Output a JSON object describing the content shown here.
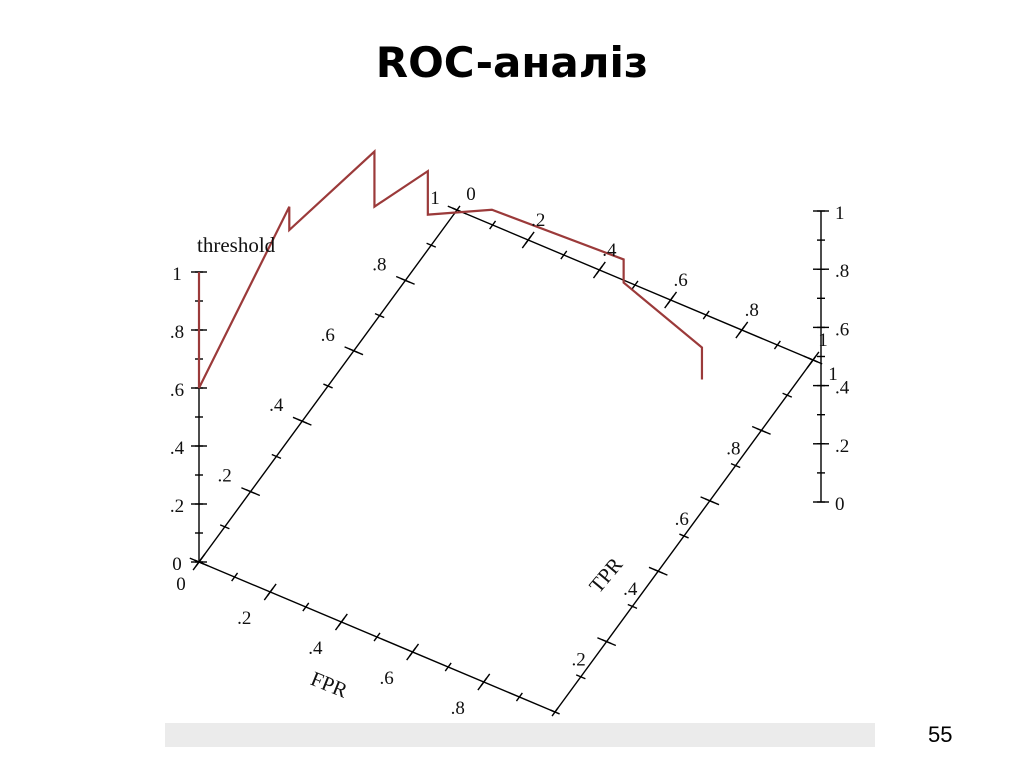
{
  "slide": {
    "title": "ROC-аналіз",
    "page_number": "55"
  },
  "chart_data": {
    "type": "line",
    "projection": "3d",
    "axes": {
      "fpr": {
        "label": "FPR",
        "range": [
          0,
          1
        ],
        "ticks": [
          {
            "value": 0,
            "label": "0"
          },
          {
            "value": 0.2,
            "label": ".2"
          },
          {
            "value": 0.4,
            "label": ".4"
          },
          {
            "value": 0.6,
            "label": ".6"
          },
          {
            "value": 0.8,
            "label": ".8"
          }
        ],
        "back_ticks": [
          {
            "value": 0.2,
            "label": ".2"
          },
          {
            "value": 0.4,
            "label": ".4"
          },
          {
            "value": 0.6,
            "label": ".6"
          },
          {
            "value": 0.8,
            "label": ".8"
          },
          {
            "value": 1,
            "label": "1"
          }
        ]
      },
      "tpr": {
        "label": "TPR",
        "range": [
          0,
          1
        ],
        "ticks": [
          {
            "value": 0.2,
            "label": ".2"
          },
          {
            "value": 0.4,
            "label": ".4"
          },
          {
            "value": 0.6,
            "label": ".6"
          },
          {
            "value": 0.8,
            "label": ".8"
          },
          {
            "value": 1,
            "label": "1"
          }
        ],
        "back_ticks": [
          {
            "value": 0,
            "label": "0"
          },
          {
            "value": 0.2,
            "label": ".2"
          },
          {
            "value": 0.4,
            "label": ".4"
          },
          {
            "value": 0.6,
            "label": ".6"
          },
          {
            "value": 0.8,
            "label": ".8"
          },
          {
            "value": 1,
            "label": "1"
          }
        ]
      },
      "threshold": {
        "label": "threshold",
        "range": [
          0,
          1
        ],
        "ticks": [
          {
            "value": 0,
            "label": "0"
          },
          {
            "value": 0.2,
            "label": ".2"
          },
          {
            "value": 0.4,
            "label": ".4"
          },
          {
            "value": 0.6,
            "label": ".6"
          },
          {
            "value": 0.8,
            "label": ".8"
          },
          {
            "value": 1,
            "label": "1"
          }
        ],
        "right_ticks": [
          {
            "value": 0,
            "label": "0"
          },
          {
            "value": 0.2,
            "label": ".2"
          },
          {
            "value": 0.4,
            "label": ".4"
          },
          {
            "value": 0.6,
            "label": ".6"
          },
          {
            "value": 0.8,
            "label": ".8"
          },
          {
            "value": 1,
            "label": "1"
          }
        ]
      }
    },
    "series": [
      {
        "color": "#9b3a3a",
        "points": [
          {
            "fpr": 0,
            "tpr": 0,
            "threshold": 1
          },
          {
            "fpr": 0,
            "tpr": 0,
            "threshold": 0.6
          },
          {
            "fpr": 0,
            "tpr": 0.35,
            "threshold": 0.8
          },
          {
            "fpr": 0,
            "tpr": 0.35,
            "threshold": 0.72
          },
          {
            "fpr": 0,
            "tpr": 0.68,
            "threshold": 0.59
          },
          {
            "fpr": 0,
            "tpr": 0.68,
            "threshold": 0.4
          },
          {
            "fpr": 0.15,
            "tpr": 0.68,
            "threshold": 0.6
          },
          {
            "fpr": 0.15,
            "tpr": 0.68,
            "threshold": 0.45
          },
          {
            "fpr": 0.33,
            "tpr": 0.68,
            "threshold": 0.56
          },
          {
            "fpr": 0.7,
            "tpr": 0.68,
            "threshold": 0.58
          },
          {
            "fpr": 0.7,
            "tpr": 0.68,
            "threshold": 0.5
          },
          {
            "fpr": 0.92,
            "tpr": 0.68,
            "threshold": 0.39
          },
          {
            "fpr": 0.92,
            "tpr": 0.68,
            "threshold": 0.28
          }
        ]
      }
    ]
  }
}
